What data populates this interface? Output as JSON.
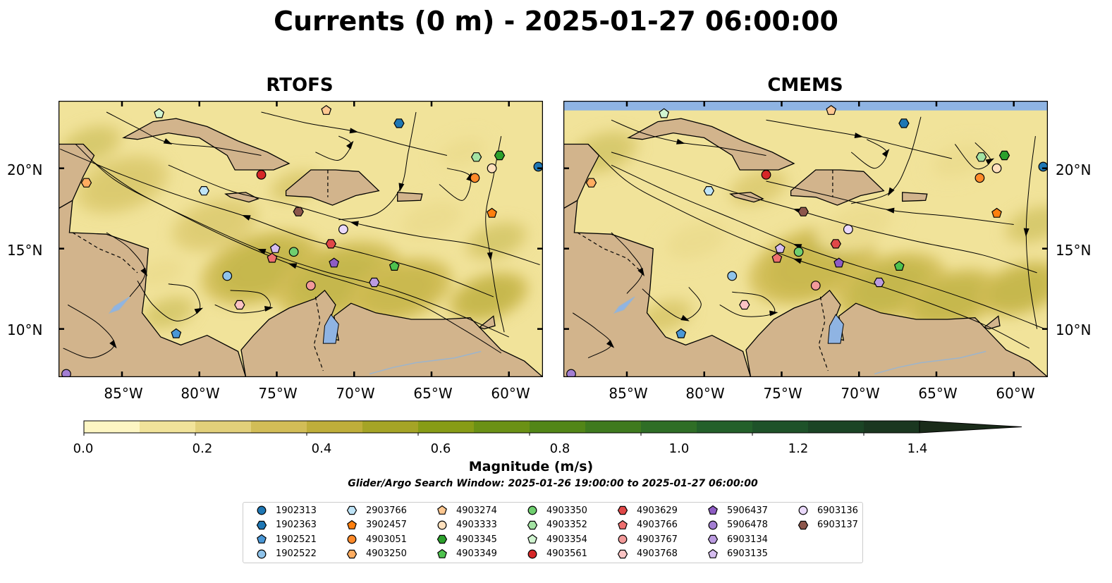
{
  "title": "Currents (0 m) - 2025-01-27 06:00:00",
  "panels": [
    {
      "title": "RTOFS"
    },
    {
      "title": "CMEMS"
    }
  ],
  "lat_ticks": [
    "20°N",
    "15°N",
    "10°N"
  ],
  "lon_ticks": [
    "85°W",
    "80°W",
    "75°W",
    "70°W",
    "65°W",
    "60°W"
  ],
  "colorbar": {
    "label": "Magnitude (m/s)",
    "ticks": [
      "0.0",
      "0.2",
      "0.4",
      "0.6",
      "0.8",
      "1.0",
      "1.2",
      "1.4"
    ],
    "min": 0.0,
    "max": 1.5,
    "extend": "max",
    "colors": [
      "#fdf6c3",
      "#f1e39a",
      "#e2d07a",
      "#d2bd57",
      "#bfae3a",
      "#a5a426",
      "#879c16",
      "#6b9115",
      "#528617",
      "#3f7a1e",
      "#2f6e26",
      "#23602a",
      "#1e5229",
      "#1b4425",
      "#1a3720",
      "#1a2b19"
    ]
  },
  "search_window": "Glider/Argo Search Window: 2025-01-26 19:00:00 to 2025-01-27 06:00:00",
  "colors": {
    "land": "#d2b48c",
    "lakes": "#8fb4e3",
    "rivers": "#9cb4cc"
  },
  "legend": [
    {
      "id": "1902313",
      "marker": "circle",
      "color": "#1f77b4"
    },
    {
      "id": "1902363",
      "marker": "hexagon",
      "color": "#1f77b4"
    },
    {
      "id": "1902521",
      "marker": "pentagon",
      "color": "#4a97d6"
    },
    {
      "id": "1902522",
      "marker": "circle",
      "color": "#8fc3ea"
    },
    {
      "id": "2903766",
      "marker": "hexagon",
      "color": "#bfe4f7"
    },
    {
      "id": "3902457",
      "marker": "pentagon",
      "color": "#ff7f0e"
    },
    {
      "id": "4903051",
      "marker": "circle",
      "color": "#ff8a2a"
    },
    {
      "id": "4903250",
      "marker": "hexagon",
      "color": "#ffac60"
    },
    {
      "id": "4903274",
      "marker": "pentagon",
      "color": "#ffc891"
    },
    {
      "id": "4903333",
      "marker": "circle",
      "color": "#ffe0bd"
    },
    {
      "id": "4903345",
      "marker": "hexagon",
      "color": "#2ca02c"
    },
    {
      "id": "4903349",
      "marker": "pentagon",
      "color": "#4ec24e"
    },
    {
      "id": "4903350",
      "marker": "circle",
      "color": "#6fcf6f"
    },
    {
      "id": "4903352",
      "marker": "hexagon",
      "color": "#a3e3a3"
    },
    {
      "id": "4903354",
      "marker": "pentagon",
      "color": "#d1f5d1"
    },
    {
      "id": "4903561",
      "marker": "circle",
      "color": "#d62728"
    },
    {
      "id": "4903629",
      "marker": "hexagon",
      "color": "#e04848"
    },
    {
      "id": "4903766",
      "marker": "pentagon",
      "color": "#ee6f6f"
    },
    {
      "id": "4903767",
      "marker": "circle",
      "color": "#f29a9a"
    },
    {
      "id": "4903768",
      "marker": "hexagon",
      "color": "#fbc3c3"
    },
    {
      "id": "5906437",
      "marker": "pentagon",
      "color": "#8e5cc4"
    },
    {
      "id": "5906478",
      "marker": "circle",
      "color": "#a37ed3"
    },
    {
      "id": "6903134",
      "marker": "hexagon",
      "color": "#bb9be0"
    },
    {
      "id": "6903135",
      "marker": "pentagon",
      "color": "#d6bdf0"
    },
    {
      "id": "6903136",
      "marker": "circle",
      "color": "#ead9fb"
    },
    {
      "id": "6903137",
      "marker": "hexagon",
      "color": "#8c564b"
    }
  ],
  "floats": [
    {
      "id": "1902313",
      "lon": -58.1,
      "lat": 20.1
    },
    {
      "id": "1902363",
      "lon": -67.1,
      "lat": 22.8
    },
    {
      "id": "1902521",
      "lon": -81.5,
      "lat": 9.7
    },
    {
      "id": "1902522",
      "lon": -78.2,
      "lat": 13.3
    },
    {
      "id": "2903766",
      "lon": -79.7,
      "lat": 18.6
    },
    {
      "id": "3902457",
      "lon": -61.1,
      "lat": 17.2
    },
    {
      "id": "4903051",
      "lon": -62.2,
      "lat": 19.4
    },
    {
      "id": "4903250",
      "lon": -87.3,
      "lat": 19.1
    },
    {
      "id": "4903274",
      "lon": -71.8,
      "lat": 23.6
    },
    {
      "id": "4903333",
      "lon": -61.1,
      "lat": 20.0
    },
    {
      "id": "4903345",
      "lon": -60.6,
      "lat": 20.8
    },
    {
      "id": "4903349",
      "lon": -67.4,
      "lat": 13.9
    },
    {
      "id": "4903350",
      "lon": -73.9,
      "lat": 14.8
    },
    {
      "id": "4903352",
      "lon": -62.1,
      "lat": 20.7
    },
    {
      "id": "4903354",
      "lon": -82.6,
      "lat": 23.4
    },
    {
      "id": "4903561",
      "lon": -76.0,
      "lat": 19.6
    },
    {
      "id": "4903629",
      "lon": -71.5,
      "lat": 15.3
    },
    {
      "id": "4903766",
      "lon": -75.3,
      "lat": 14.4
    },
    {
      "id": "4903767",
      "lon": -72.8,
      "lat": 12.7
    },
    {
      "id": "4903768",
      "lon": -77.4,
      "lat": 11.5
    },
    {
      "id": "5906437",
      "lon": -71.3,
      "lat": 14.1
    },
    {
      "id": "5906478",
      "lon": -88.6,
      "lat": 7.2
    },
    {
      "id": "6903134",
      "lon": -68.7,
      "lat": 12.9
    },
    {
      "id": "6903135",
      "lon": -75.1,
      "lat": 15.0
    },
    {
      "id": "6903136",
      "lon": -70.7,
      "lat": 16.2
    },
    {
      "id": "6903137",
      "lon": -73.6,
      "lat": 17.3
    }
  ]
}
